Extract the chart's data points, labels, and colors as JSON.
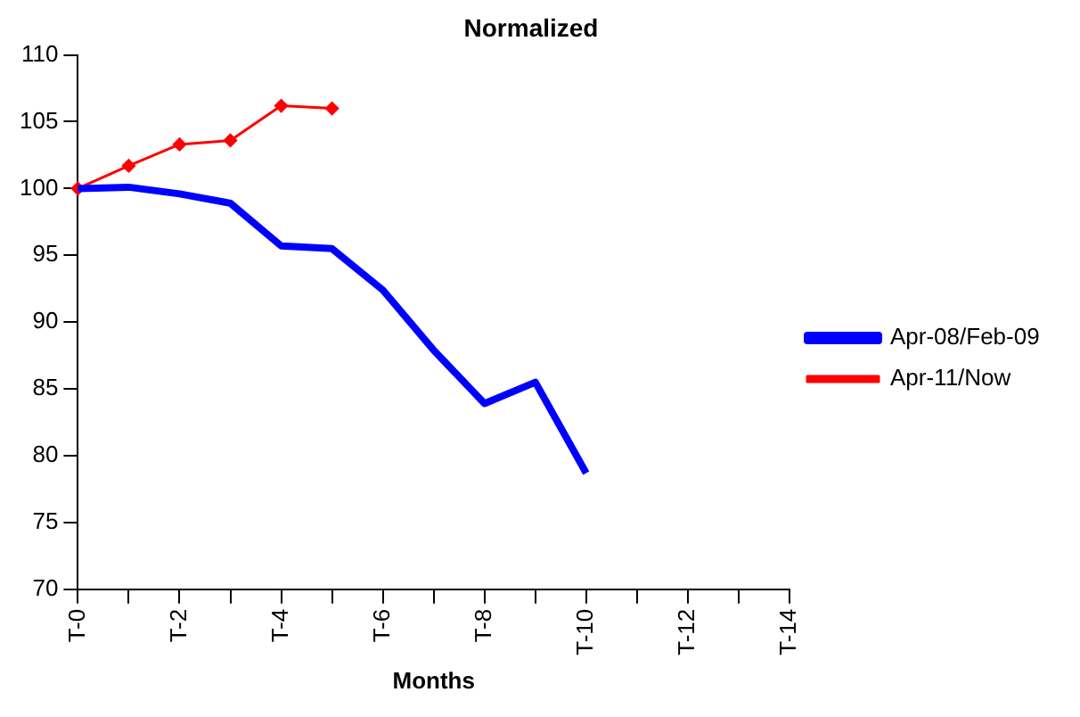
{
  "chart_data": {
    "type": "line",
    "title": "Normalized",
    "xlabel": "Months",
    "categories": [
      "T-0",
      null,
      "T-2",
      null,
      "T-4",
      null,
      "T-6",
      null,
      "T-8",
      null,
      "T-10",
      null,
      "T-12",
      null,
      "T-14"
    ],
    "series": [
      {
        "name": "Apr-08/Feb-09",
        "color": "#0000ff",
        "marker": "none",
        "values": [
          100,
          100.1,
          99.6,
          98.9,
          95.7,
          95.5,
          92.4,
          87.9,
          83.9,
          85.5,
          78.7,
          null,
          null,
          null,
          null
        ]
      },
      {
        "name": "Apr-11/Now",
        "color": "#ff0000",
        "marker": "diamond",
        "values": [
          100,
          101.7,
          103.3,
          103.6,
          106.2,
          106,
          null,
          null,
          null,
          null,
          null,
          null,
          null,
          null,
          null
        ]
      }
    ],
    "ylim": [
      70,
      110
    ],
    "yticks": [
      70,
      75,
      80,
      85,
      90,
      95,
      100,
      105,
      110
    ],
    "grid": false,
    "legend": "right"
  }
}
